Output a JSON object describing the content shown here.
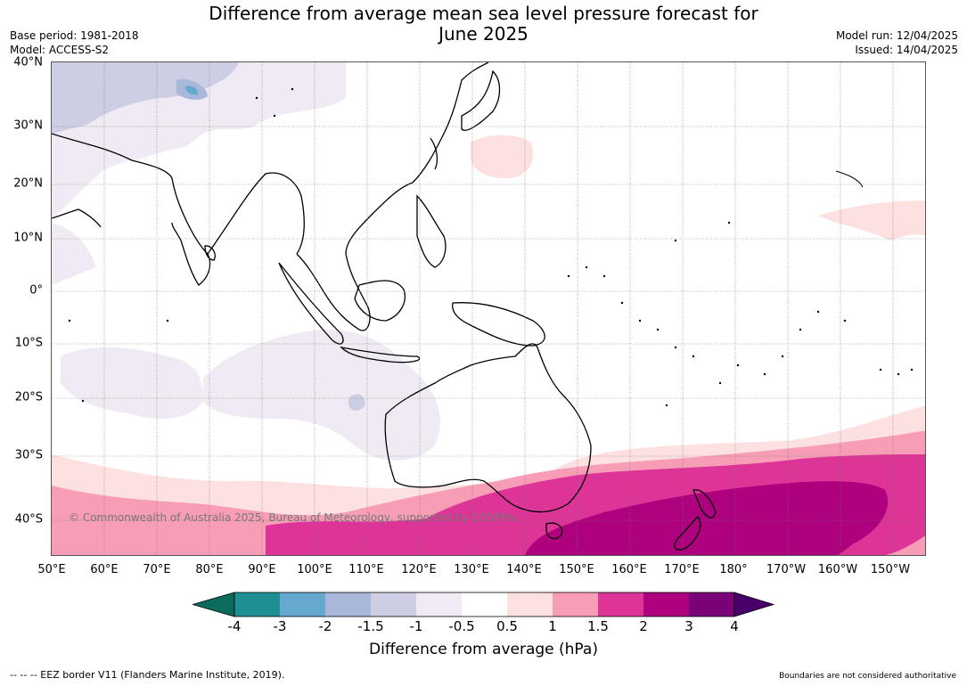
{
  "title_line1": "Difference from average mean sea level pressure forecast for",
  "title_line2": "June 2025",
  "base_period": "Base period: 1981-2018",
  "model": "Model: ACCESS-S2",
  "model_run": "Model run: 12/04/2025",
  "issued": "Issued: 14/04/2025",
  "lat_labels": [
    "40°N",
    "30°N",
    "20°N",
    "10°N",
    "0°",
    "10°S",
    "20°S",
    "30°S",
    "40°S"
  ],
  "lon_labels": [
    "50°E",
    "60°E",
    "70°E",
    "80°E",
    "90°E",
    "100°E",
    "110°E",
    "120°E",
    "130°E",
    "140°E",
    "150°E",
    "160°E",
    "170°E",
    "180°",
    "170°W",
    "160°W",
    "150°W"
  ],
  "colorbar": {
    "label": "Difference from average (hPa)",
    "ticks": [
      "-4",
      "-3",
      "-2",
      "-1.5",
      "-1",
      "-0.5",
      "0.5",
      "1",
      "1.5",
      "2",
      "3",
      "4"
    ],
    "colors": [
      "#0d6b5e",
      "#1e8f93",
      "#66a9cf",
      "#a9b8d8",
      "#cdcde3",
      "#efeaf4",
      "#ffffff",
      "#fde0e0",
      "#f79db6",
      "#dd3497",
      "#ae017e",
      "#7a0177",
      "#49006a"
    ]
  },
  "copyright": "© Commonwealth of Australia 2025, Bureau of Meteorology, supported by COSPPac",
  "eez_note": "--  --  -- EEZ border V11 (Flanders Marine Institute, 2019).",
  "boundaries_note": "Boundaries are not considered authoritative"
}
